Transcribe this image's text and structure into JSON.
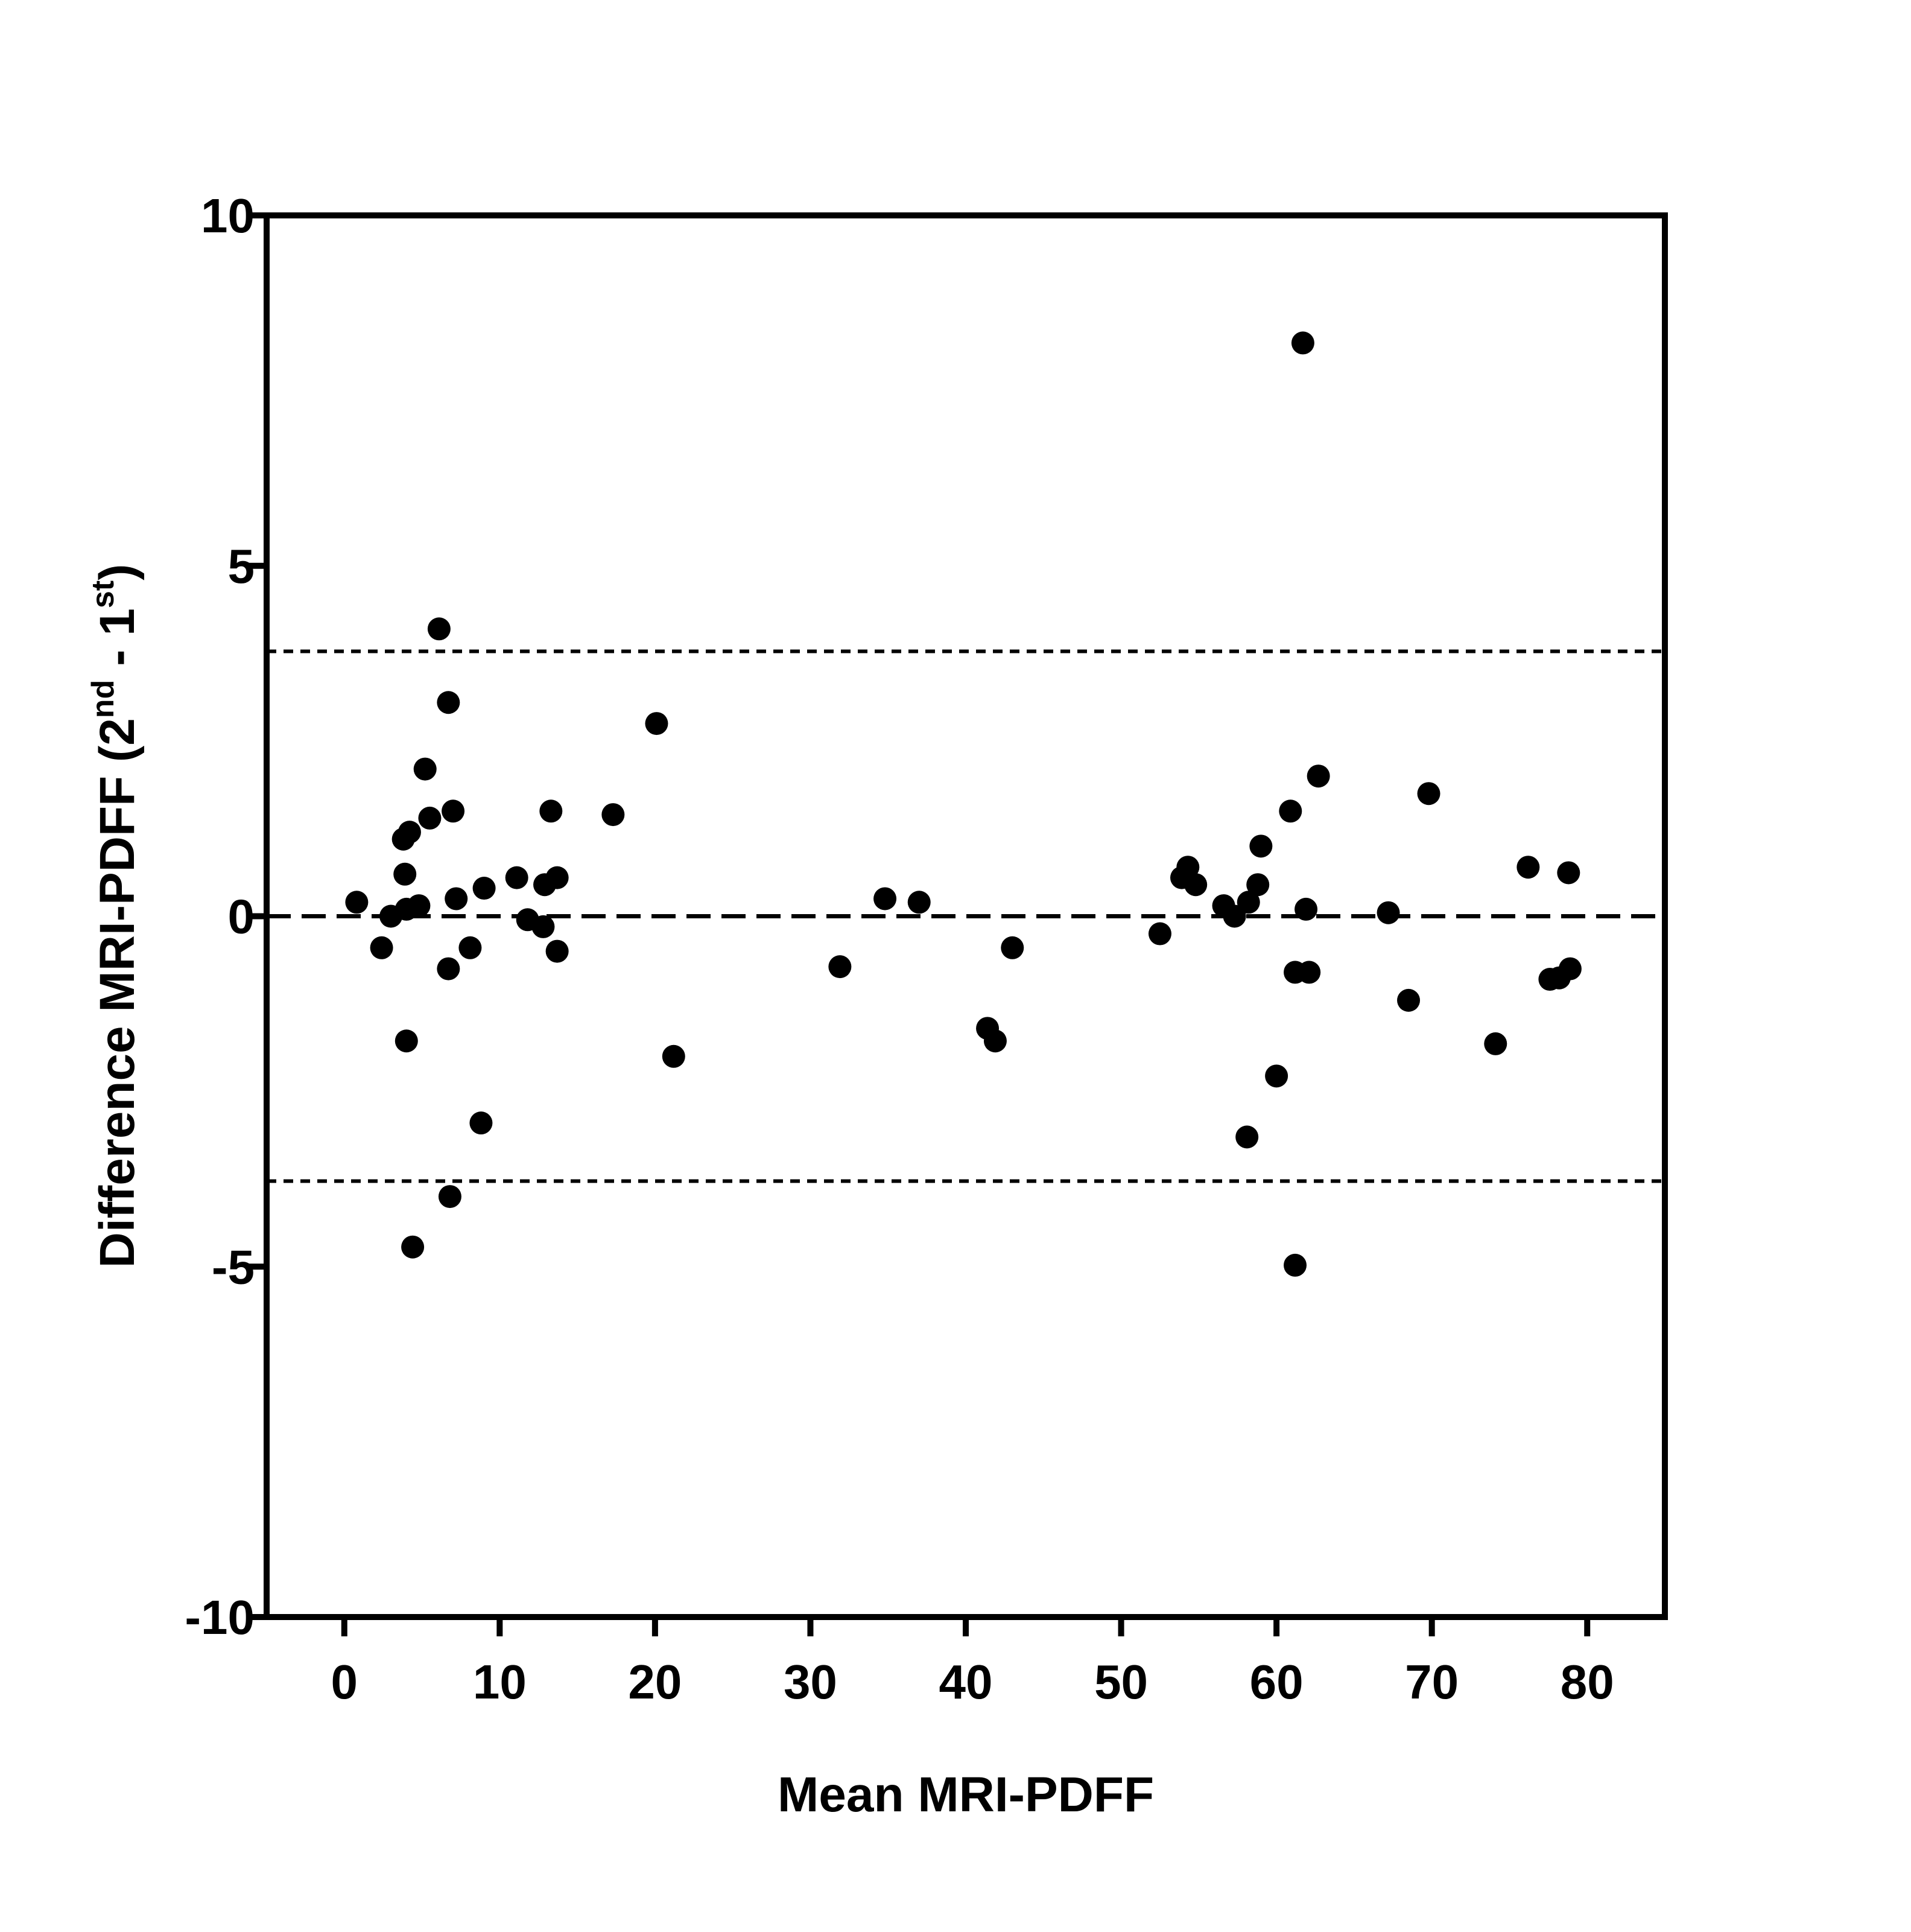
{
  "chart_data": {
    "type": "scatter",
    "title": "",
    "xlabel": "Mean MRI-PDFF",
    "ylabel": {
      "main": "Difference MRI-PDFF  (2",
      "sup1": "nd",
      "mid": " - 1",
      "sup2": "st",
      "end": ")"
    },
    "xlim": [
      -5,
      85
    ],
    "ylim": [
      -10,
      10
    ],
    "x_ticks": [
      0,
      10,
      20,
      30,
      40,
      50,
      60,
      70,
      80
    ],
    "y_ticks": [
      10,
      5,
      0,
      -5,
      -10
    ],
    "reference_lines": [
      {
        "y": 0,
        "style": "dashed"
      },
      {
        "y": 3.78,
        "style": "dotted"
      },
      {
        "y": -3.78,
        "style": "dotted"
      }
    ],
    "series": [
      {
        "marker_color": "#000000",
        "points": [
          [
            0.8,
            0.2
          ],
          [
            2.4,
            -0.45
          ],
          [
            3.0,
            0.0
          ],
          [
            3.8,
            1.1
          ],
          [
            3.9,
            0.6
          ],
          [
            4.0,
            0.1
          ],
          [
            4.2,
            1.2
          ],
          [
            4.0,
            -1.78
          ],
          [
            4.4,
            -4.72
          ],
          [
            4.8,
            0.15
          ],
          [
            5.2,
            2.1
          ],
          [
            5.5,
            1.4
          ],
          [
            6.1,
            4.1
          ],
          [
            6.7,
            3.05
          ],
          [
            6.7,
            -0.75
          ],
          [
            6.8,
            -4.0
          ],
          [
            7.0,
            1.5
          ],
          [
            7.2,
            0.25
          ],
          [
            8.1,
            -0.45
          ],
          [
            8.8,
            -2.95
          ],
          [
            9.0,
            0.4
          ],
          [
            11.1,
            0.55
          ],
          [
            11.8,
            -0.05
          ],
          [
            12.8,
            -0.15
          ],
          [
            12.9,
            0.45
          ],
          [
            13.3,
            1.5
          ],
          [
            13.7,
            0.55
          ],
          [
            13.7,
            -0.5
          ],
          [
            17.3,
            1.45
          ],
          [
            20.1,
            2.75
          ],
          [
            21.2,
            -2.0
          ],
          [
            31.9,
            -0.72
          ],
          [
            34.8,
            0.25
          ],
          [
            37.0,
            0.2
          ],
          [
            41.4,
            -1.6
          ],
          [
            41.9,
            -1.78
          ],
          [
            43.0,
            -0.45
          ],
          [
            52.5,
            -0.25
          ],
          [
            53.9,
            0.55
          ],
          [
            54.3,
            0.7
          ],
          [
            54.8,
            0.45
          ],
          [
            56.6,
            0.15
          ],
          [
            57.3,
            0.0
          ],
          [
            58.1,
            -3.15
          ],
          [
            58.2,
            0.2
          ],
          [
            58.8,
            0.45
          ],
          [
            59.0,
            1.0
          ],
          [
            60.0,
            -2.28
          ],
          [
            60.9,
            1.5
          ],
          [
            61.2,
            -0.8
          ],
          [
            61.2,
            -4.98
          ],
          [
            61.7,
            8.18
          ],
          [
            61.9,
            0.1
          ],
          [
            62.1,
            -0.8
          ],
          [
            62.7,
            2.0
          ],
          [
            67.2,
            0.05
          ],
          [
            68.5,
            -1.2
          ],
          [
            69.8,
            1.75
          ],
          [
            74.1,
            -1.82
          ],
          [
            76.2,
            0.7
          ],
          [
            77.6,
            -0.9
          ],
          [
            78.2,
            -0.88
          ],
          [
            78.8,
            0.62
          ],
          [
            78.9,
            -0.75
          ]
        ]
      }
    ]
  }
}
